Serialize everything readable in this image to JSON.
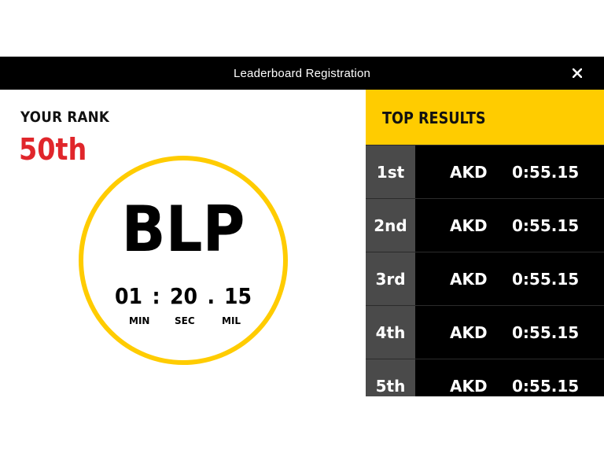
{
  "window": {
    "title": "Leaderboard Registration",
    "close_icon": "close-icon"
  },
  "rank": {
    "label": "YOUR RANK",
    "value": "50th"
  },
  "entry": {
    "initials": "BLP",
    "time": {
      "min": "01",
      "sec": "20",
      "mil": "15",
      "sep1": ":",
      "sep2": "."
    },
    "units": {
      "min": "MIN",
      "sec": "SEC",
      "mil": "MIL"
    }
  },
  "top_results": {
    "title": "TOP RESULTS",
    "rows": [
      {
        "pos": "1st",
        "name": "AKD",
        "time": "0:55.15"
      },
      {
        "pos": "2nd",
        "name": "AKD",
        "time": "0:55.15"
      },
      {
        "pos": "3rd",
        "name": "AKD",
        "time": "0:55.15"
      },
      {
        "pos": "4th",
        "name": "AKD",
        "time": "0:55.15"
      },
      {
        "pos": "5th",
        "name": "AKD",
        "time": "0:55.15"
      }
    ]
  },
  "colors": {
    "accent": "#ffcc00",
    "rank": "#e0262b",
    "bar": "#000000",
    "pos_bg": "#4a4a4a"
  }
}
